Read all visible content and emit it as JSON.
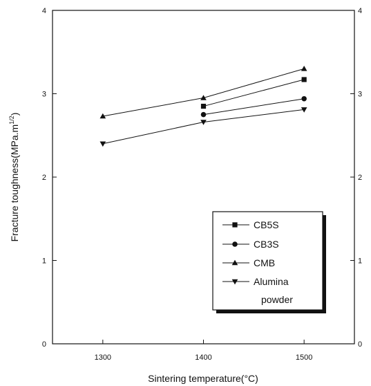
{
  "chart_data": {
    "type": "line",
    "title": "",
    "xlabel": "Sintering temperature(°C)",
    "ylabel_main": "Fracture toughness(MPa.m",
    "ylabel_exponent": "1/2",
    "ylabel_close": ")",
    "xlim": [
      1250,
      1550
    ],
    "ylim": [
      0,
      4
    ],
    "x_ticks": [
      "1300",
      "1400",
      "1500"
    ],
    "y_ticks": [
      "0",
      "1",
      "2",
      "3",
      "4"
    ],
    "y_ticks_right": [
      "0",
      "1",
      "2",
      "3",
      "4"
    ],
    "grid": false,
    "legend_position": "bottom-right",
    "series": [
      {
        "name": "CB5S",
        "marker": "square",
        "x": [
          1400,
          1500
        ],
        "values": [
          2.85,
          3.17
        ]
      },
      {
        "name": "CB3S",
        "marker": "circle",
        "x": [
          1400,
          1500
        ],
        "values": [
          2.75,
          2.94
        ]
      },
      {
        "name": "CMB",
        "marker": "triangle-up",
        "x": [
          1300,
          1400,
          1500
        ],
        "values": [
          2.73,
          2.95,
          3.3
        ]
      },
      {
        "name": "Alumina\npowder",
        "marker": "triangle-down",
        "x": [
          1300,
          1400,
          1500
        ],
        "values": [
          2.4,
          2.66,
          2.81
        ]
      }
    ]
  }
}
